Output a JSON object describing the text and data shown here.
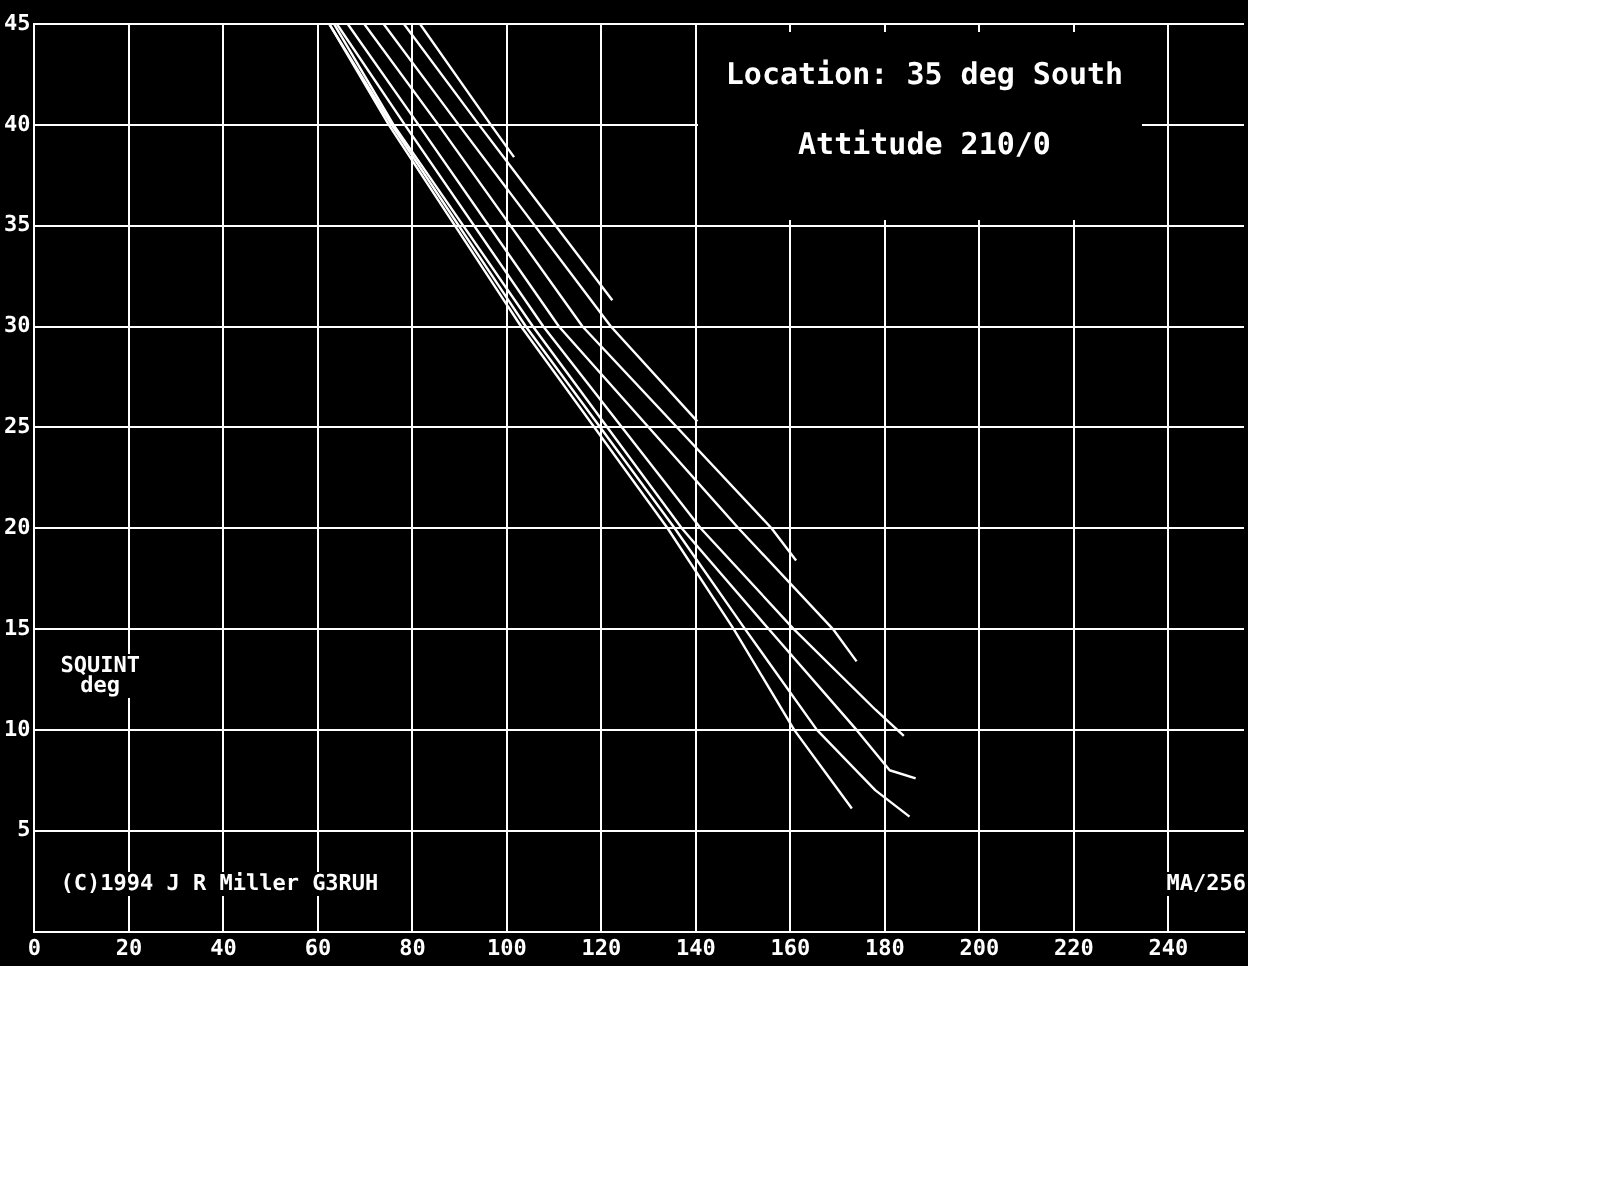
{
  "chart_data": {
    "type": "line",
    "title": "Location: 35 deg South",
    "subtitle": "Attitude 210/0",
    "ylabel": "SQUINT deg",
    "annotations": [
      "(C)1994 J R Miller G3RUH",
      "MA/256"
    ],
    "xlim": [
      0,
      256
    ],
    "xticks": [
      0,
      20,
      40,
      60,
      80,
      100,
      120,
      140,
      160,
      180,
      200,
      220,
      240
    ],
    "ylim": [
      0,
      45
    ],
    "yticks": [
      {
        "value": 0,
        "label": null
      },
      5,
      10,
      15,
      20,
      25,
      30,
      35,
      40,
      45
    ],
    "grid": true,
    "marker": "none",
    "line_style": "solid",
    "series": [
      {
        "color": "#ffffff",
        "x": [
          62.4,
          75,
          103,
          134,
          148,
          160.8,
          173
        ],
        "values": [
          45,
          40,
          30,
          20,
          15,
          10,
          6.1
        ]
      },
      {
        "color": "#ffffff",
        "x": [
          62.4,
          75.6,
          104,
          135.5,
          150.4,
          165.6,
          178,
          185.2
        ],
        "values": [
          45,
          40,
          30,
          20,
          15,
          10,
          7,
          5.7
        ]
      },
      {
        "color": "#ffffff",
        "x": [
          63.4,
          76,
          105.5,
          137,
          155.4,
          174,
          181,
          186.5
        ],
        "values": [
          45,
          40,
          30,
          20,
          15,
          10,
          8,
          7.6
        ]
      },
      {
        "color": "#ffffff",
        "x": [
          64,
          78.4,
          107.7,
          141,
          160.7,
          178,
          184
        ],
        "values": [
          45,
          40,
          30,
          20,
          15,
          11,
          9.7
        ]
      },
      {
        "color": "#ffffff",
        "x": [
          66.3,
          81.3,
          111,
          149,
          169,
          174
        ],
        "values": [
          45,
          40,
          30,
          20,
          15,
          13.4
        ]
      },
      {
        "color": "#ffffff",
        "x": [
          69.8,
          85.5,
          116,
          156,
          161.2
        ],
        "values": [
          45,
          40,
          30,
          20,
          18.4
        ]
      },
      {
        "color": "#ffffff",
        "x": [
          73.9,
          89.8,
          122,
          140.3
        ],
        "values": [
          45,
          40,
          30,
          25.3
        ]
      },
      {
        "color": "#ffffff",
        "x": [
          78.2,
          94.1,
          122.3
        ],
        "values": [
          45,
          40,
          31.3
        ]
      },
      {
        "color": "#ffffff",
        "x": [
          81.6,
          96.6,
          101.5
        ],
        "values": [
          45,
          40,
          38.4
        ]
      }
    ]
  }
}
